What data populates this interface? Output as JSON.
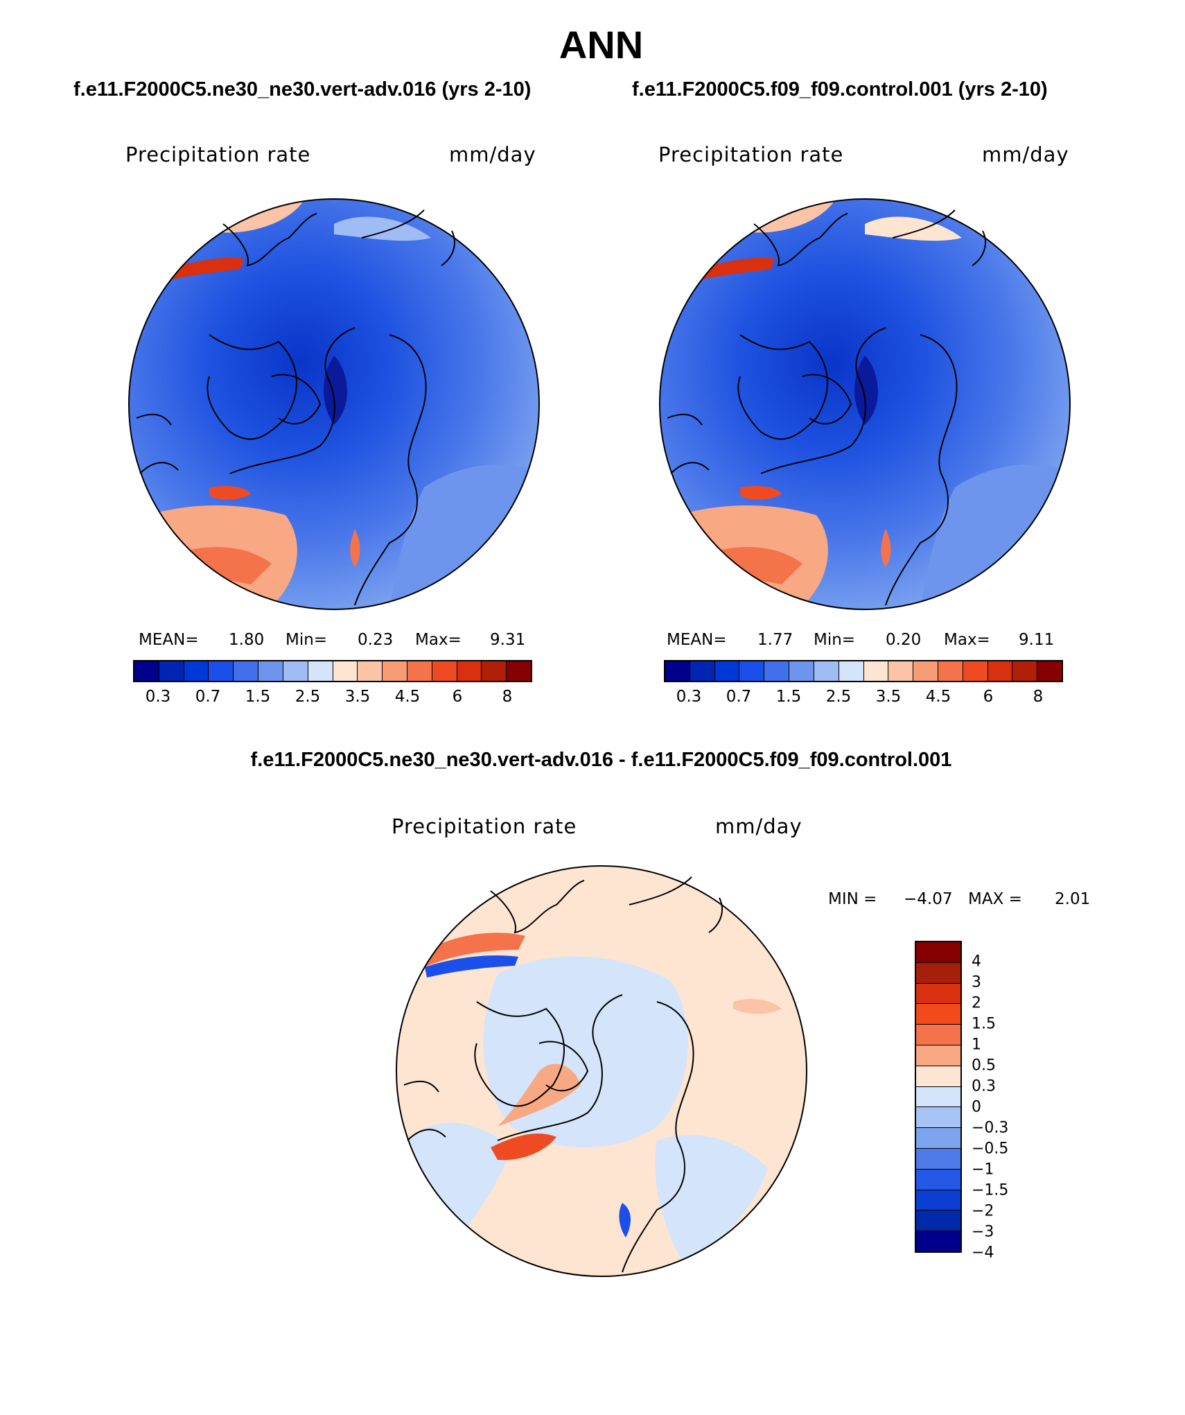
{
  "title": "ANN",
  "panels": [
    {
      "case": "f.e11.F2000C5.ne30_ne30.vert-adv.016 (yrs 2-10)",
      "variable": "Precipitation rate",
      "units": "mm/day",
      "mean_label": "MEAN=",
      "mean": "1.80",
      "min_label": "Min=",
      "min": "0.23",
      "max_label": "Max=",
      "max": "9.31"
    },
    {
      "case": "f.e11.F2000C5.f09_f09.control.001 (yrs 2-10)",
      "variable": "Precipitation rate",
      "units": "mm/day",
      "mean_label": "MEAN=",
      "mean": "1.77",
      "min_label": "Min=",
      "min": "0.20",
      "max_label": "Max=",
      "max": "9.11"
    }
  ],
  "diff": {
    "case": "f.e11.F2000C5.ne30_ne30.vert-adv.016 - f.e11.F2000C5.f09_f09.control.001",
    "variable": "Precipitation rate",
    "units": "mm/day",
    "min_label": "MIN =",
    "min": "−4.07",
    "max_label": "MAX =",
    "max": "2.01"
  },
  "colorbar_abs": {
    "colors": [
      "#00008b",
      "#0025b4",
      "#0038d8",
      "#1a4fea",
      "#4070ea",
      "#6d95ee",
      "#a0bcf5",
      "#d3e4fb",
      "#fde5d2",
      "#fbc4a6",
      "#f89c73",
      "#f5734a",
      "#ef4b22",
      "#d9300f",
      "#b02008",
      "#860001"
    ],
    "labels": [
      "0.3",
      "0.7",
      "1.5",
      "2.5",
      "3.5",
      "4.5",
      "6",
      "8"
    ]
  },
  "colorbar_diff": {
    "colors": [
      "#860001",
      "#a51f0a",
      "#d9300f",
      "#f24a1b",
      "#f5734a",
      "#f8a883",
      "#fde5d2",
      "#d3e4fb",
      "#a8c4f5",
      "#7ea3ef",
      "#4d7cea",
      "#2658e6",
      "#0b3fd2",
      "#002aaa",
      "#00008b"
    ],
    "labels": [
      "4",
      "3",
      "2",
      "1.5",
      "1",
      "0.5",
      "0.3",
      "0",
      "−0.3",
      "−0.5",
      "−1",
      "−1.5",
      "−2",
      "−3",
      "−4"
    ]
  }
}
